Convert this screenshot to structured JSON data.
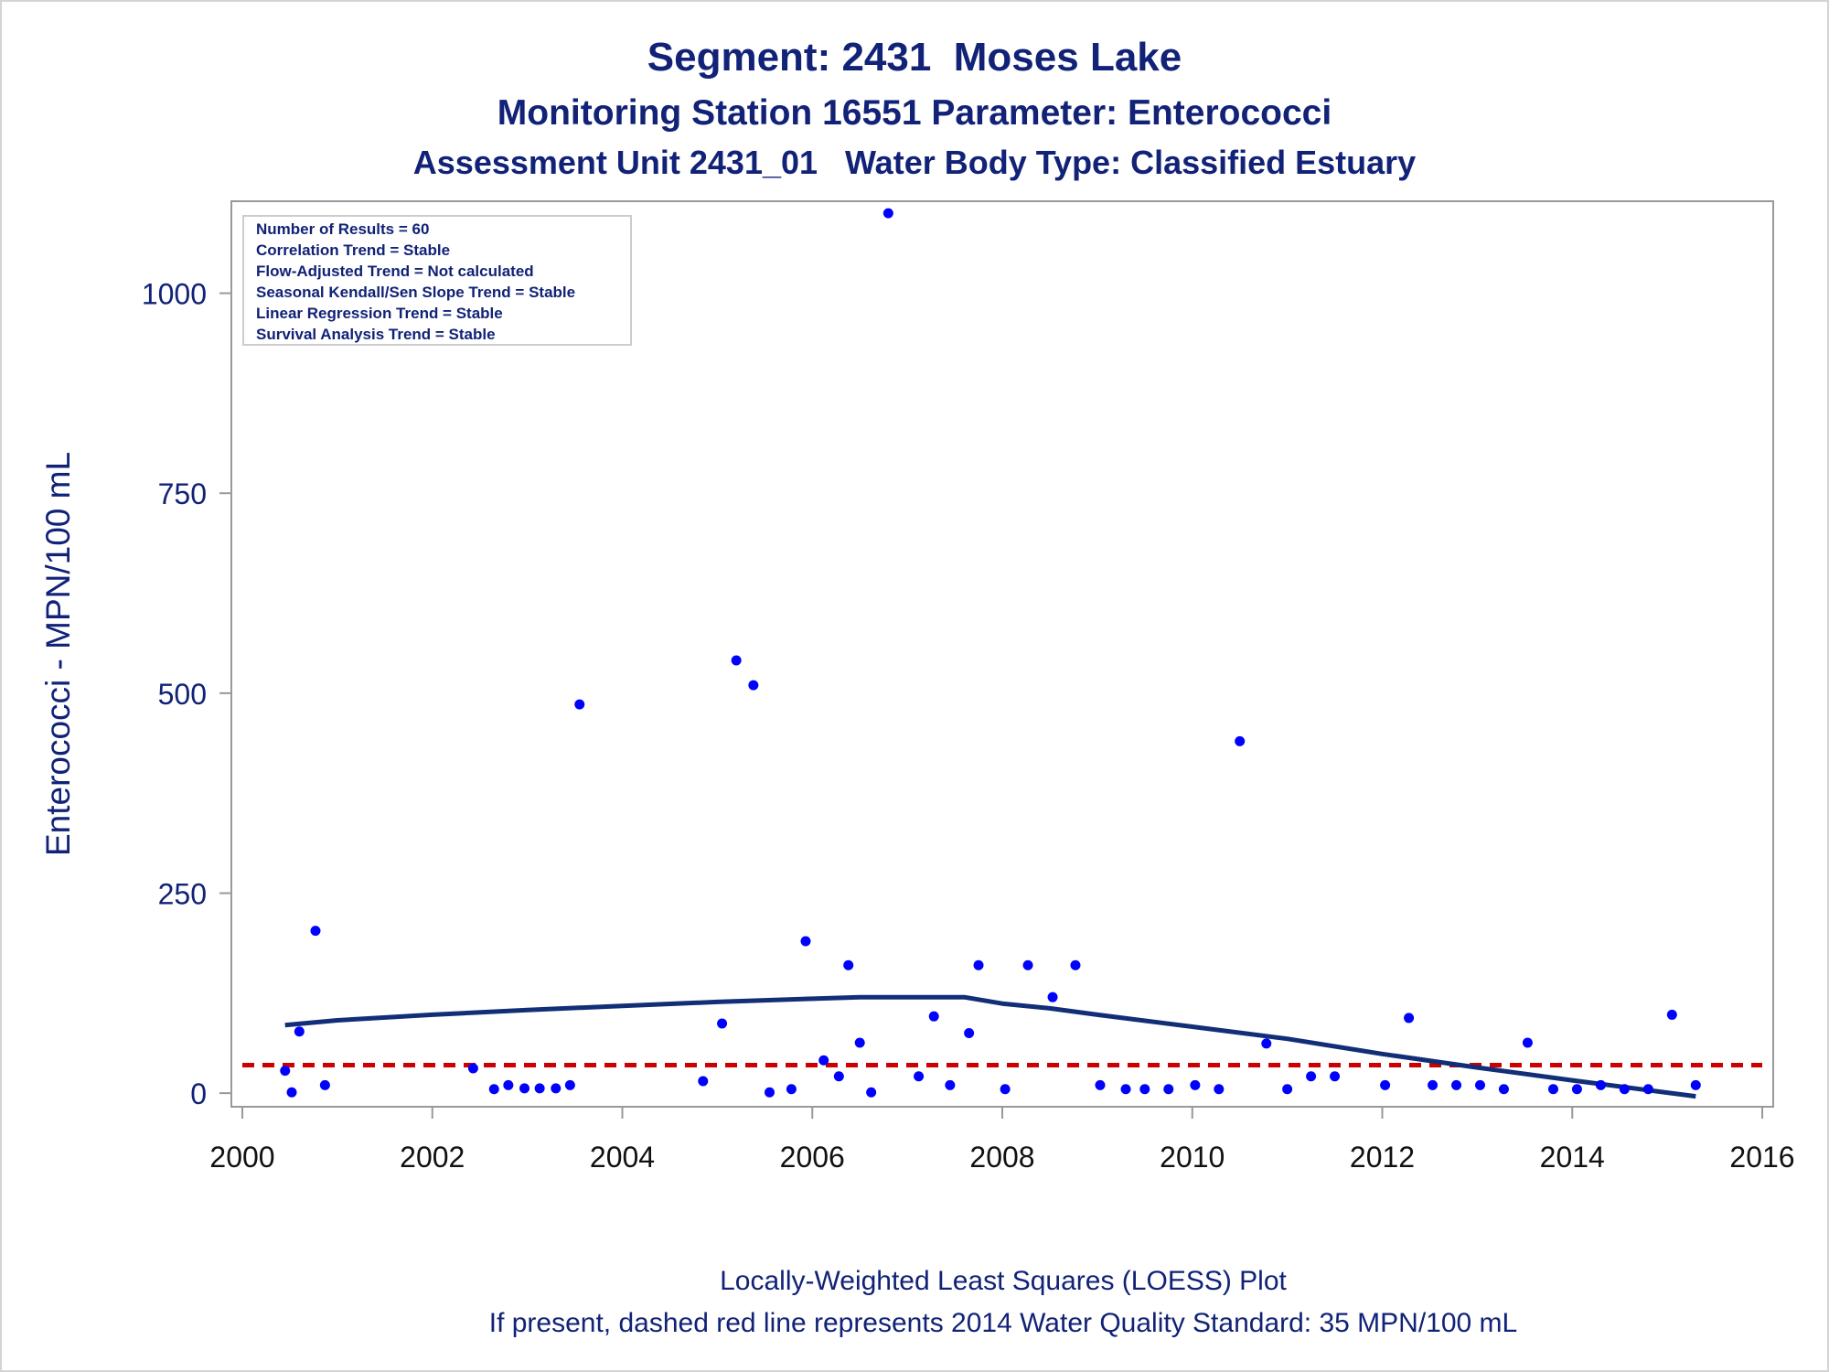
{
  "titles": {
    "line1": "Segment: 2431  Moses Lake",
    "line2": "Monitoring Station 16551 Parameter: Enterococci",
    "line3": "Assessment Unit 2431_01   Water Body Type: Classified Estuary"
  },
  "footnotes": {
    "line1": "Locally-Weighted Least Squares (LOESS) Plot",
    "line2": "If present, dashed red line represents 2014 Water Quality Standard: 35 MPN/100 mL"
  },
  "stats_box": [
    "Number of Results = 60",
    "Correlation Trend = Stable",
    "Flow-Adjusted Trend = Not calculated",
    "Seasonal Kendall/Sen Slope Trend = Stable",
    "Linear Regression Trend = Stable",
    "Survival Analysis Trend = Stable"
  ],
  "colors": {
    "text": "#112277",
    "points": "#0000ff",
    "loess": "#112e77",
    "standard": "#cc0000",
    "axis": "#999999"
  },
  "chart_data": {
    "type": "scatter",
    "title": "Segment: 2431  Moses Lake",
    "xlabel": "",
    "ylabel": "Enterococci - MPN/100 mL",
    "xlim": [
      2000,
      2016
    ],
    "ylim": [
      -17,
      1115
    ],
    "xticks": [
      2000,
      2002,
      2004,
      2006,
      2008,
      2010,
      2012,
      2014,
      2016
    ],
    "yticks": [
      0,
      250,
      500,
      750,
      1000
    ],
    "grid": false,
    "series": [
      {
        "style": "markers",
        "points": [
          [
            2000.45,
            28
          ],
          [
            2000.52,
            1
          ],
          [
            2000.6,
            77
          ],
          [
            2000.77,
            203
          ],
          [
            2000.87,
            10
          ],
          [
            2002.43,
            31
          ],
          [
            2002.65,
            5
          ],
          [
            2002.8,
            10
          ],
          [
            2002.97,
            6
          ],
          [
            2003.13,
            6
          ],
          [
            2003.3,
            6
          ],
          [
            2003.45,
            10
          ],
          [
            2003.55,
            486
          ],
          [
            2004.85,
            15
          ],
          [
            2005.05,
            87
          ],
          [
            2005.2,
            541
          ],
          [
            2005.38,
            510
          ],
          [
            2005.55,
            1
          ],
          [
            2005.78,
            5
          ],
          [
            2005.93,
            190
          ],
          [
            2006.12,
            41
          ],
          [
            2006.28,
            21
          ],
          [
            2006.38,
            160
          ],
          [
            2006.5,
            63
          ],
          [
            2006.62,
            1
          ],
          [
            2006.8,
            1100
          ],
          [
            2007.12,
            21
          ],
          [
            2007.28,
            96
          ],
          [
            2007.45,
            10
          ],
          [
            2007.65,
            75
          ],
          [
            2007.75,
            160
          ],
          [
            2008.03,
            5
          ],
          [
            2008.27,
            160
          ],
          [
            2008.53,
            120
          ],
          [
            2008.77,
            160
          ],
          [
            2009.03,
            10
          ],
          [
            2009.3,
            5
          ],
          [
            2009.5,
            5
          ],
          [
            2009.75,
            5
          ],
          [
            2010.03,
            10
          ],
          [
            2010.28,
            5
          ],
          [
            2010.5,
            440
          ],
          [
            2010.78,
            62
          ],
          [
            2011.0,
            5
          ],
          [
            2011.25,
            21
          ],
          [
            2011.5,
            21
          ],
          [
            2012.03,
            10
          ],
          [
            2012.28,
            94
          ],
          [
            2012.53,
            10
          ],
          [
            2012.78,
            10
          ],
          [
            2013.03,
            10
          ],
          [
            2013.28,
            5
          ],
          [
            2013.53,
            63
          ],
          [
            2013.8,
            5
          ],
          [
            2014.05,
            5
          ],
          [
            2014.3,
            10
          ],
          [
            2014.55,
            5
          ],
          [
            2014.8,
            5
          ],
          [
            2015.05,
            98
          ],
          [
            2015.3,
            10
          ]
        ]
      },
      {
        "style": "loess-line",
        "points": [
          [
            2000.45,
            85
          ],
          [
            2001.0,
            91
          ],
          [
            2002.0,
            98
          ],
          [
            2003.0,
            104
          ],
          [
            2004.0,
            109
          ],
          [
            2005.0,
            114
          ],
          [
            2006.0,
            118
          ],
          [
            2006.5,
            120
          ],
          [
            2007.0,
            120
          ],
          [
            2007.6,
            120
          ],
          [
            2008.0,
            112
          ],
          [
            2008.5,
            106
          ],
          [
            2009.0,
            98
          ],
          [
            2010.0,
            83
          ],
          [
            2011.0,
            68
          ],
          [
            2012.0,
            49
          ],
          [
            2013.0,
            32
          ],
          [
            2014.0,
            16
          ],
          [
            2015.3,
            -4
          ]
        ]
      },
      {
        "style": "standard-line",
        "points": [
          [
            2000,
            35
          ],
          [
            2016,
            35
          ]
        ]
      }
    ]
  }
}
